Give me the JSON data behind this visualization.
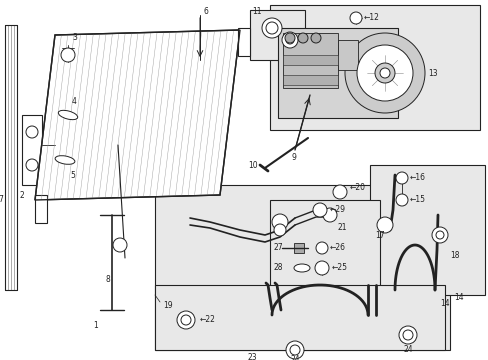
{
  "bg_color": "#ffffff",
  "line_color": "#222222",
  "box_bg": "#e8e8e8",
  "fs": 5.5,
  "fs_sm": 4.8
}
